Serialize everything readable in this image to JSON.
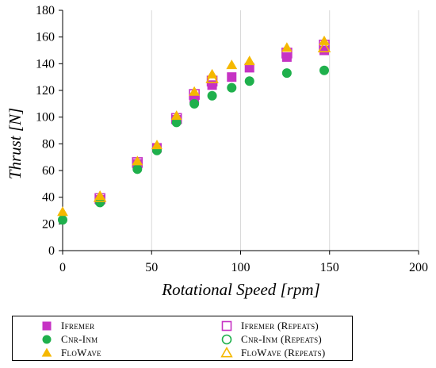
{
  "chart_data": {
    "type": "scatter",
    "title": "",
    "xlabel": "Rotational Speed [rpm]",
    "ylabel": "Thrust [N]",
    "xlim": [
      0,
      200
    ],
    "ylim": [
      0,
      180
    ],
    "xticks": [
      "0",
      "50",
      "100",
      "150",
      "200"
    ],
    "yticks": [
      "0",
      "20",
      "40",
      "60",
      "80",
      "100",
      "120",
      "140",
      "160",
      "180"
    ],
    "grid": "vertical",
    "legend_position": "bottom",
    "series": [
      {
        "name": "Ifremer",
        "marker": "square",
        "fill": true,
        "color": "#c633c4",
        "points": [
          [
            21,
            38
          ],
          [
            42,
            65
          ],
          [
            53,
            77
          ],
          [
            64,
            98
          ],
          [
            74,
            114
          ],
          [
            84,
            124
          ],
          [
            95,
            130
          ],
          [
            105,
            137
          ],
          [
            126,
            145
          ],
          [
            147,
            150
          ]
        ]
      },
      {
        "name": "Ifremer (Repeats)",
        "marker": "square",
        "fill": false,
        "color": "#c633c4",
        "points": [
          [
            21,
            39
          ],
          [
            42,
            66
          ],
          [
            64,
            99
          ],
          [
            74,
            117
          ],
          [
            84,
            127
          ],
          [
            126,
            148
          ],
          [
            147,
            154
          ]
        ]
      },
      {
        "name": "Cnr-Inm",
        "marker": "circle",
        "fill": true,
        "color": "#1fb04c",
        "points": [
          [
            0,
            23
          ],
          [
            21,
            36
          ],
          [
            42,
            61
          ],
          [
            53,
            75
          ],
          [
            64,
            96
          ],
          [
            74,
            110
          ],
          [
            84,
            116
          ],
          [
            95,
            122
          ],
          [
            105,
            127
          ],
          [
            126,
            133
          ],
          [
            147,
            135
          ]
        ]
      },
      {
        "name": "Cnr-Inm (Repeats)",
        "marker": "circle",
        "fill": false,
        "color": "#1fb04c",
        "points": []
      },
      {
        "name": "FloWave",
        "marker": "triangle",
        "fill": true,
        "color": "#f5b800",
        "points": [
          [
            0,
            29
          ],
          [
            21,
            41
          ],
          [
            42,
            67
          ],
          [
            53,
            79
          ],
          [
            64,
            101
          ],
          [
            74,
            119
          ],
          [
            84,
            132
          ],
          [
            95,
            139
          ],
          [
            105,
            142
          ],
          [
            126,
            152
          ],
          [
            147,
            157
          ]
        ]
      },
      {
        "name": "FloWave (Repeats)",
        "marker": "triangle",
        "fill": false,
        "color": "#f5b800",
        "points": [
          [
            21,
            40
          ],
          [
            84,
            129
          ],
          [
            147,
            152
          ]
        ]
      }
    ]
  }
}
